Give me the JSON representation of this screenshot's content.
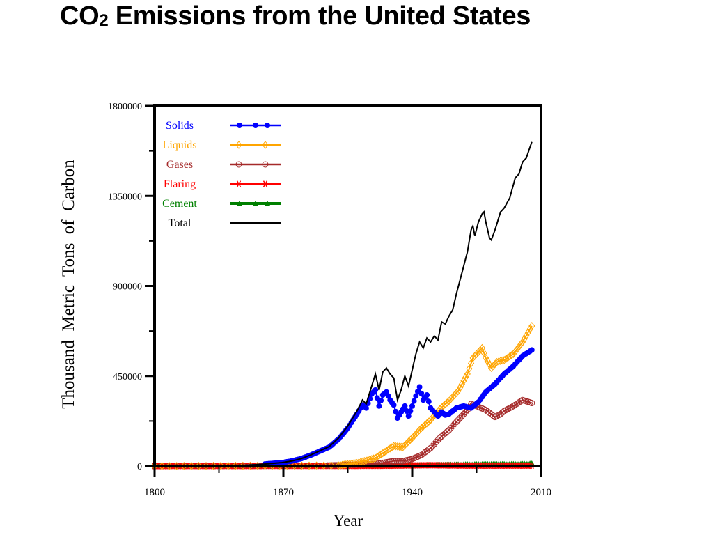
{
  "slide": {
    "title_main": "CO",
    "title_sub": "2",
    "title_rest": " Emissions from the United States"
  },
  "chart_data": {
    "type": "line",
    "title": "",
    "xlabel": "Year",
    "ylabel": "Thousand  Metric  Tons  of  Carbon",
    "xlim": [
      1800,
      2010
    ],
    "ylim": [
      0,
      1800000
    ],
    "x_ticks": [
      1800,
      1870,
      1940,
      2010
    ],
    "y_ticks": [
      0,
      450000,
      900000,
      1350000,
      1800000
    ],
    "grid": false,
    "legend_position": "top-left",
    "series": [
      {
        "name": "Solids",
        "color": "#0000ff",
        "marker": "filled-circle",
        "points": [
          [
            1800,
            0
          ],
          [
            1830,
            0
          ],
          [
            1850,
            4000
          ],
          [
            1860,
            10000
          ],
          [
            1870,
            18000
          ],
          [
            1875,
            26000
          ],
          [
            1880,
            38000
          ],
          [
            1885,
            55000
          ],
          [
            1890,
            75000
          ],
          [
            1895,
            95000
          ],
          [
            1900,
            135000
          ],
          [
            1905,
            190000
          ],
          [
            1910,
            260000
          ],
          [
            1913,
            305000
          ],
          [
            1915,
            290000
          ],
          [
            1918,
            360000
          ],
          [
            1920,
            380000
          ],
          [
            1922,
            300000
          ],
          [
            1924,
            355000
          ],
          [
            1926,
            370000
          ],
          [
            1928,
            330000
          ],
          [
            1930,
            305000
          ],
          [
            1932,
            240000
          ],
          [
            1934,
            270000
          ],
          [
            1936,
            300000
          ],
          [
            1938,
            250000
          ],
          [
            1940,
            300000
          ],
          [
            1942,
            350000
          ],
          [
            1944,
            395000
          ],
          [
            1946,
            330000
          ],
          [
            1948,
            355000
          ],
          [
            1950,
            290000
          ],
          [
            1952,
            270000
          ],
          [
            1954,
            250000
          ],
          [
            1956,
            270000
          ],
          [
            1958,
            255000
          ],
          [
            1960,
            260000
          ],
          [
            1964,
            290000
          ],
          [
            1968,
            300000
          ],
          [
            1972,
            290000
          ],
          [
            1976,
            320000
          ],
          [
            1980,
            370000
          ],
          [
            1985,
            410000
          ],
          [
            1990,
            460000
          ],
          [
            1995,
            500000
          ],
          [
            2000,
            550000
          ],
          [
            2005,
            580000
          ]
        ]
      },
      {
        "name": "Liquids",
        "color": "#ffa500",
        "marker": "open-diamond",
        "points": [
          [
            1800,
            0
          ],
          [
            1900,
            3000
          ],
          [
            1910,
            15000
          ],
          [
            1920,
            40000
          ],
          [
            1925,
            70000
          ],
          [
            1930,
            100000
          ],
          [
            1935,
            95000
          ],
          [
            1940,
            140000
          ],
          [
            1945,
            190000
          ],
          [
            1950,
            230000
          ],
          [
            1955,
            285000
          ],
          [
            1960,
            325000
          ],
          [
            1965,
            375000
          ],
          [
            1970,
            460000
          ],
          [
            1973,
            540000
          ],
          [
            1978,
            590000
          ],
          [
            1980,
            540000
          ],
          [
            1983,
            490000
          ],
          [
            1986,
            520000
          ],
          [
            1990,
            530000
          ],
          [
            1995,
            560000
          ],
          [
            2000,
            620000
          ],
          [
            2005,
            700000
          ]
        ]
      },
      {
        "name": "Gases",
        "color": "#a52a2a",
        "marker": "open-circle",
        "points": [
          [
            1800,
            0
          ],
          [
            1880,
            1000
          ],
          [
            1900,
            4000
          ],
          [
            1920,
            10000
          ],
          [
            1930,
            25000
          ],
          [
            1935,
            25000
          ],
          [
            1940,
            35000
          ],
          [
            1945,
            55000
          ],
          [
            1950,
            90000
          ],
          [
            1955,
            140000
          ],
          [
            1960,
            180000
          ],
          [
            1965,
            230000
          ],
          [
            1970,
            280000
          ],
          [
            1972,
            310000
          ],
          [
            1975,
            300000
          ],
          [
            1980,
            280000
          ],
          [
            1985,
            245000
          ],
          [
            1988,
            260000
          ],
          [
            1990,
            275000
          ],
          [
            1995,
            300000
          ],
          [
            2000,
            330000
          ],
          [
            2005,
            315000
          ]
        ]
      },
      {
        "name": "Flaring",
        "color": "#ff0000",
        "marker": "asterisk",
        "points": [
          [
            1800,
            0
          ],
          [
            1920,
            1000
          ],
          [
            1950,
            4000
          ],
          [
            1970,
            2000
          ],
          [
            2005,
            2000
          ]
        ]
      },
      {
        "name": "Cement",
        "color": "#008000",
        "marker": "filled-triangle",
        "points": [
          [
            1800,
            0
          ],
          [
            1900,
            1000
          ],
          [
            1930,
            3000
          ],
          [
            1950,
            6000
          ],
          [
            1970,
            10000
          ],
          [
            2000,
            12000
          ],
          [
            2005,
            14000
          ]
        ]
      },
      {
        "name": "Total",
        "color": "#000000",
        "marker": "none",
        "points": [
          [
            1800,
            0
          ],
          [
            1830,
            0
          ],
          [
            1850,
            4000
          ],
          [
            1860,
            10000
          ],
          [
            1870,
            18000
          ],
          [
            1875,
            26000
          ],
          [
            1880,
            38000
          ],
          [
            1885,
            56000
          ],
          [
            1890,
            77000
          ],
          [
            1895,
            98000
          ],
          [
            1900,
            140000
          ],
          [
            1905,
            200000
          ],
          [
            1910,
            275000
          ],
          [
            1913,
            330000
          ],
          [
            1915,
            310000
          ],
          [
            1918,
            400000
          ],
          [
            1920,
            460000
          ],
          [
            1922,
            380000
          ],
          [
            1924,
            470000
          ],
          [
            1926,
            490000
          ],
          [
            1928,
            460000
          ],
          [
            1930,
            440000
          ],
          [
            1932,
            330000
          ],
          [
            1934,
            380000
          ],
          [
            1936,
            450000
          ],
          [
            1938,
            400000
          ],
          [
            1940,
            480000
          ],
          [
            1942,
            560000
          ],
          [
            1944,
            620000
          ],
          [
            1946,
            590000
          ],
          [
            1948,
            640000
          ],
          [
            1950,
            620000
          ],
          [
            1952,
            650000
          ],
          [
            1954,
            630000
          ],
          [
            1956,
            720000
          ],
          [
            1958,
            710000
          ],
          [
            1960,
            750000
          ],
          [
            1962,
            780000
          ],
          [
            1964,
            860000
          ],
          [
            1966,
            930000
          ],
          [
            1968,
            1000000
          ],
          [
            1970,
            1070000
          ],
          [
            1972,
            1180000
          ],
          [
            1973,
            1200000
          ],
          [
            1974,
            1150000
          ],
          [
            1976,
            1220000
          ],
          [
            1978,
            1260000
          ],
          [
            1979,
            1270000
          ],
          [
            1980,
            1220000
          ],
          [
            1982,
            1140000
          ],
          [
            1983,
            1130000
          ],
          [
            1985,
            1180000
          ],
          [
            1988,
            1270000
          ],
          [
            1990,
            1290000
          ],
          [
            1993,
            1340000
          ],
          [
            1996,
            1440000
          ],
          [
            1998,
            1460000
          ],
          [
            2000,
            1520000
          ],
          [
            2002,
            1540000
          ],
          [
            2005,
            1620000
          ]
        ]
      }
    ]
  }
}
